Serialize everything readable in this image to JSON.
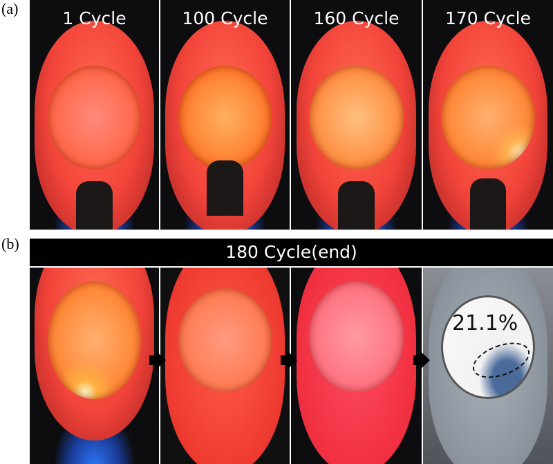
{
  "panel_a": {
    "label": "(a)",
    "captions": [
      "1 Cycle",
      "100 Cycle",
      "160 Cycle",
      "170 Cycle"
    ]
  },
  "panel_b": {
    "label": "(b)",
    "banner": "180 Cycle(end)",
    "annotation": "21.1%"
  }
}
